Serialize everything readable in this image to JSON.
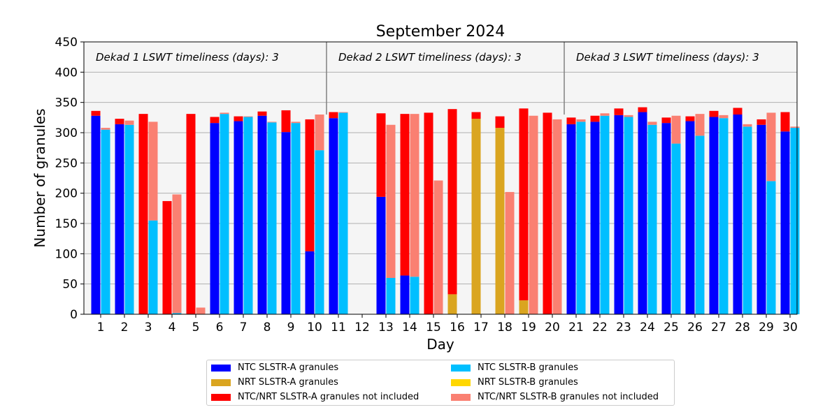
{
  "chart_data": {
    "type": "bar",
    "title": "September 2024",
    "xlabel": "Day",
    "ylabel": "Number of granules",
    "ylim": [
      0,
      450
    ],
    "yticks": [
      0,
      50,
      100,
      150,
      200,
      250,
      300,
      350,
      400,
      450
    ],
    "grid": true,
    "categories": [
      "1",
      "2",
      "3",
      "4",
      "5",
      "6",
      "7",
      "8",
      "9",
      "10",
      "11",
      "12",
      "13",
      "14",
      "15",
      "16",
      "17",
      "18",
      "19",
      "20",
      "21",
      "22",
      "23",
      "24",
      "25",
      "26",
      "27",
      "28",
      "29",
      "30"
    ],
    "annotations": [
      {
        "text": "Dekad 1 LSWT timeliness (days): 3",
        "days": [
          1,
          10
        ]
      },
      {
        "text": "Dekad 2 LSWT timeliness (days): 3",
        "days": [
          11,
          20
        ]
      },
      {
        "text": "Dekad 3 LSWT timeliness (days): 3",
        "days": [
          21,
          30
        ]
      }
    ],
    "series": [
      {
        "name": "NTC SLSTR-A granules",
        "color": "#0000ff",
        "bar": "A",
        "values": [
          328,
          314,
          0,
          0,
          0,
          316,
          319,
          328,
          301,
          104,
          324,
          0,
          194,
          64,
          0,
          0,
          0,
          0,
          0,
          0,
          314,
          318,
          329,
          334,
          316,
          319,
          326,
          330,
          313,
          302
        ]
      },
      {
        "name": "NRT SLSTR-A granules",
        "color": "#daa520",
        "bar": "A",
        "values": [
          0,
          0,
          0,
          0,
          0,
          0,
          0,
          0,
          0,
          0,
          0,
          0,
          0,
          0,
          0,
          33,
          323,
          308,
          23,
          0,
          0,
          0,
          0,
          0,
          0,
          0,
          0,
          0,
          0,
          0
        ]
      },
      {
        "name": "NTC/NRT SLSTR-A granules not included",
        "color": "#ff0000",
        "bar": "A",
        "values": [
          8,
          9,
          331,
          187,
          331,
          10,
          8,
          7,
          36,
          218,
          10,
          0,
          138,
          267,
          333,
          306,
          11,
          19,
          317,
          333,
          11,
          10,
          11,
          8,
          9,
          8,
          10,
          11,
          9,
          32
        ]
      },
      {
        "name": "NTC SLSTR-B granules",
        "color": "#00bfff",
        "bar": "B",
        "values": [
          305,
          313,
          155,
          2,
          0,
          331,
          326,
          317,
          316,
          271,
          333,
          0,
          60,
          62,
          0,
          0,
          0,
          0,
          0,
          0,
          318,
          328,
          326,
          313,
          282,
          295,
          324,
          310,
          220,
          308
        ]
      },
      {
        "name": "NRT SLSTR-B granules",
        "color": "#ffd700",
        "bar": "B",
        "values": [
          0,
          0,
          0,
          0,
          0,
          0,
          0,
          0,
          0,
          0,
          0,
          0,
          0,
          0,
          0,
          0,
          0,
          0,
          0,
          0,
          0,
          0,
          0,
          0,
          0,
          0,
          0,
          0,
          0,
          0
        ]
      },
      {
        "name": "NTC/NRT SLSTR-B granules not included",
        "color": "#fa8072",
        "bar": "B",
        "values": [
          3,
          7,
          163,
          196,
          11,
          2,
          1,
          1,
          2,
          59,
          1,
          0,
          253,
          269,
          221,
          0,
          0,
          202,
          328,
          322,
          4,
          4,
          3,
          5,
          46,
          36,
          5,
          4,
          113,
          2
        ]
      }
    ],
    "legend_placement": "below"
  }
}
